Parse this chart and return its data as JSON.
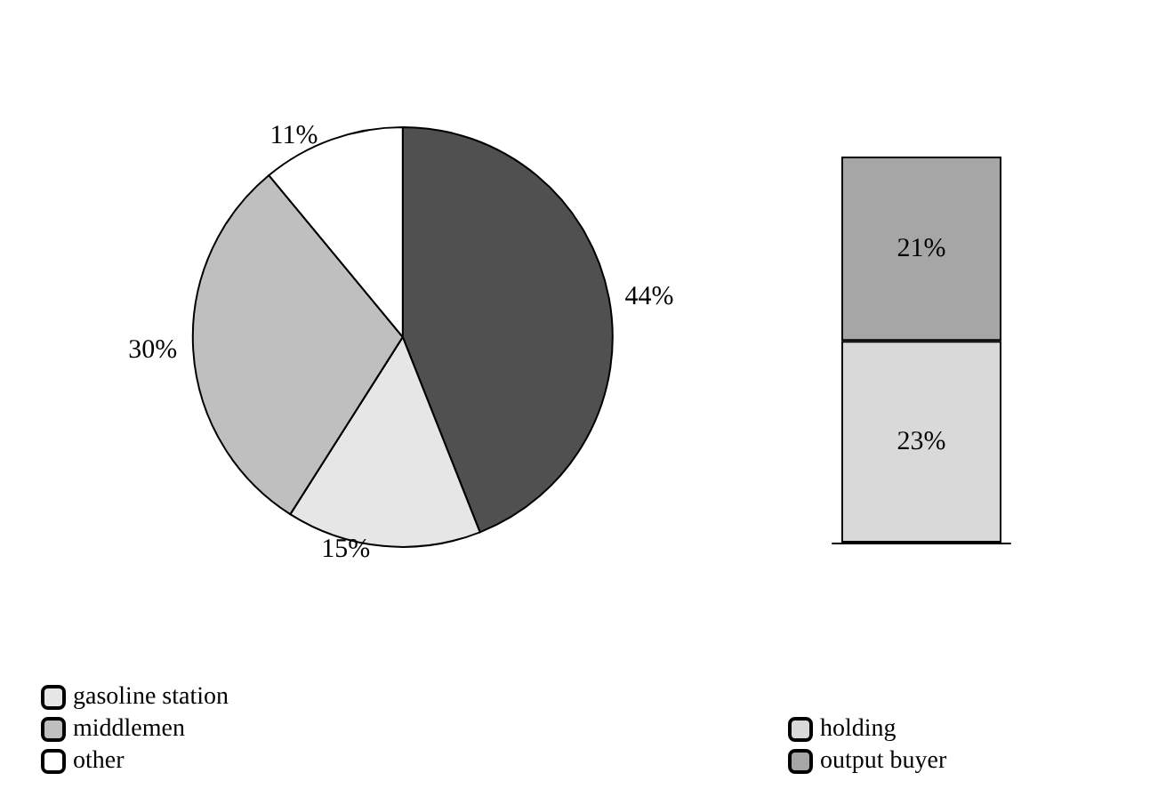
{
  "chart_data": [
    {
      "type": "pie",
      "categories": [
        null,
        "gasoline station",
        "middlemen",
        "other"
      ],
      "values": [
        44,
        15,
        30,
        11
      ],
      "colors": [
        "#505050",
        "#e6e6e6",
        "#bfbfbf",
        "#ffffff"
      ],
      "value_labels": [
        "44%",
        "15%",
        "30%",
        "11%"
      ],
      "legend": "bottom"
    },
    {
      "type": "bar",
      "stacked": true,
      "categories": [
        null
      ],
      "series": [
        {
          "name": "holding",
          "color": "#d9d9d9",
          "values": [
            23
          ],
          "value_labels": [
            "23%"
          ]
        },
        {
          "name": "output buyer",
          "color": "#a6a6a6",
          "values": [
            21
          ],
          "value_labels": [
            "21%"
          ]
        }
      ],
      "legend": "bottom"
    }
  ]
}
